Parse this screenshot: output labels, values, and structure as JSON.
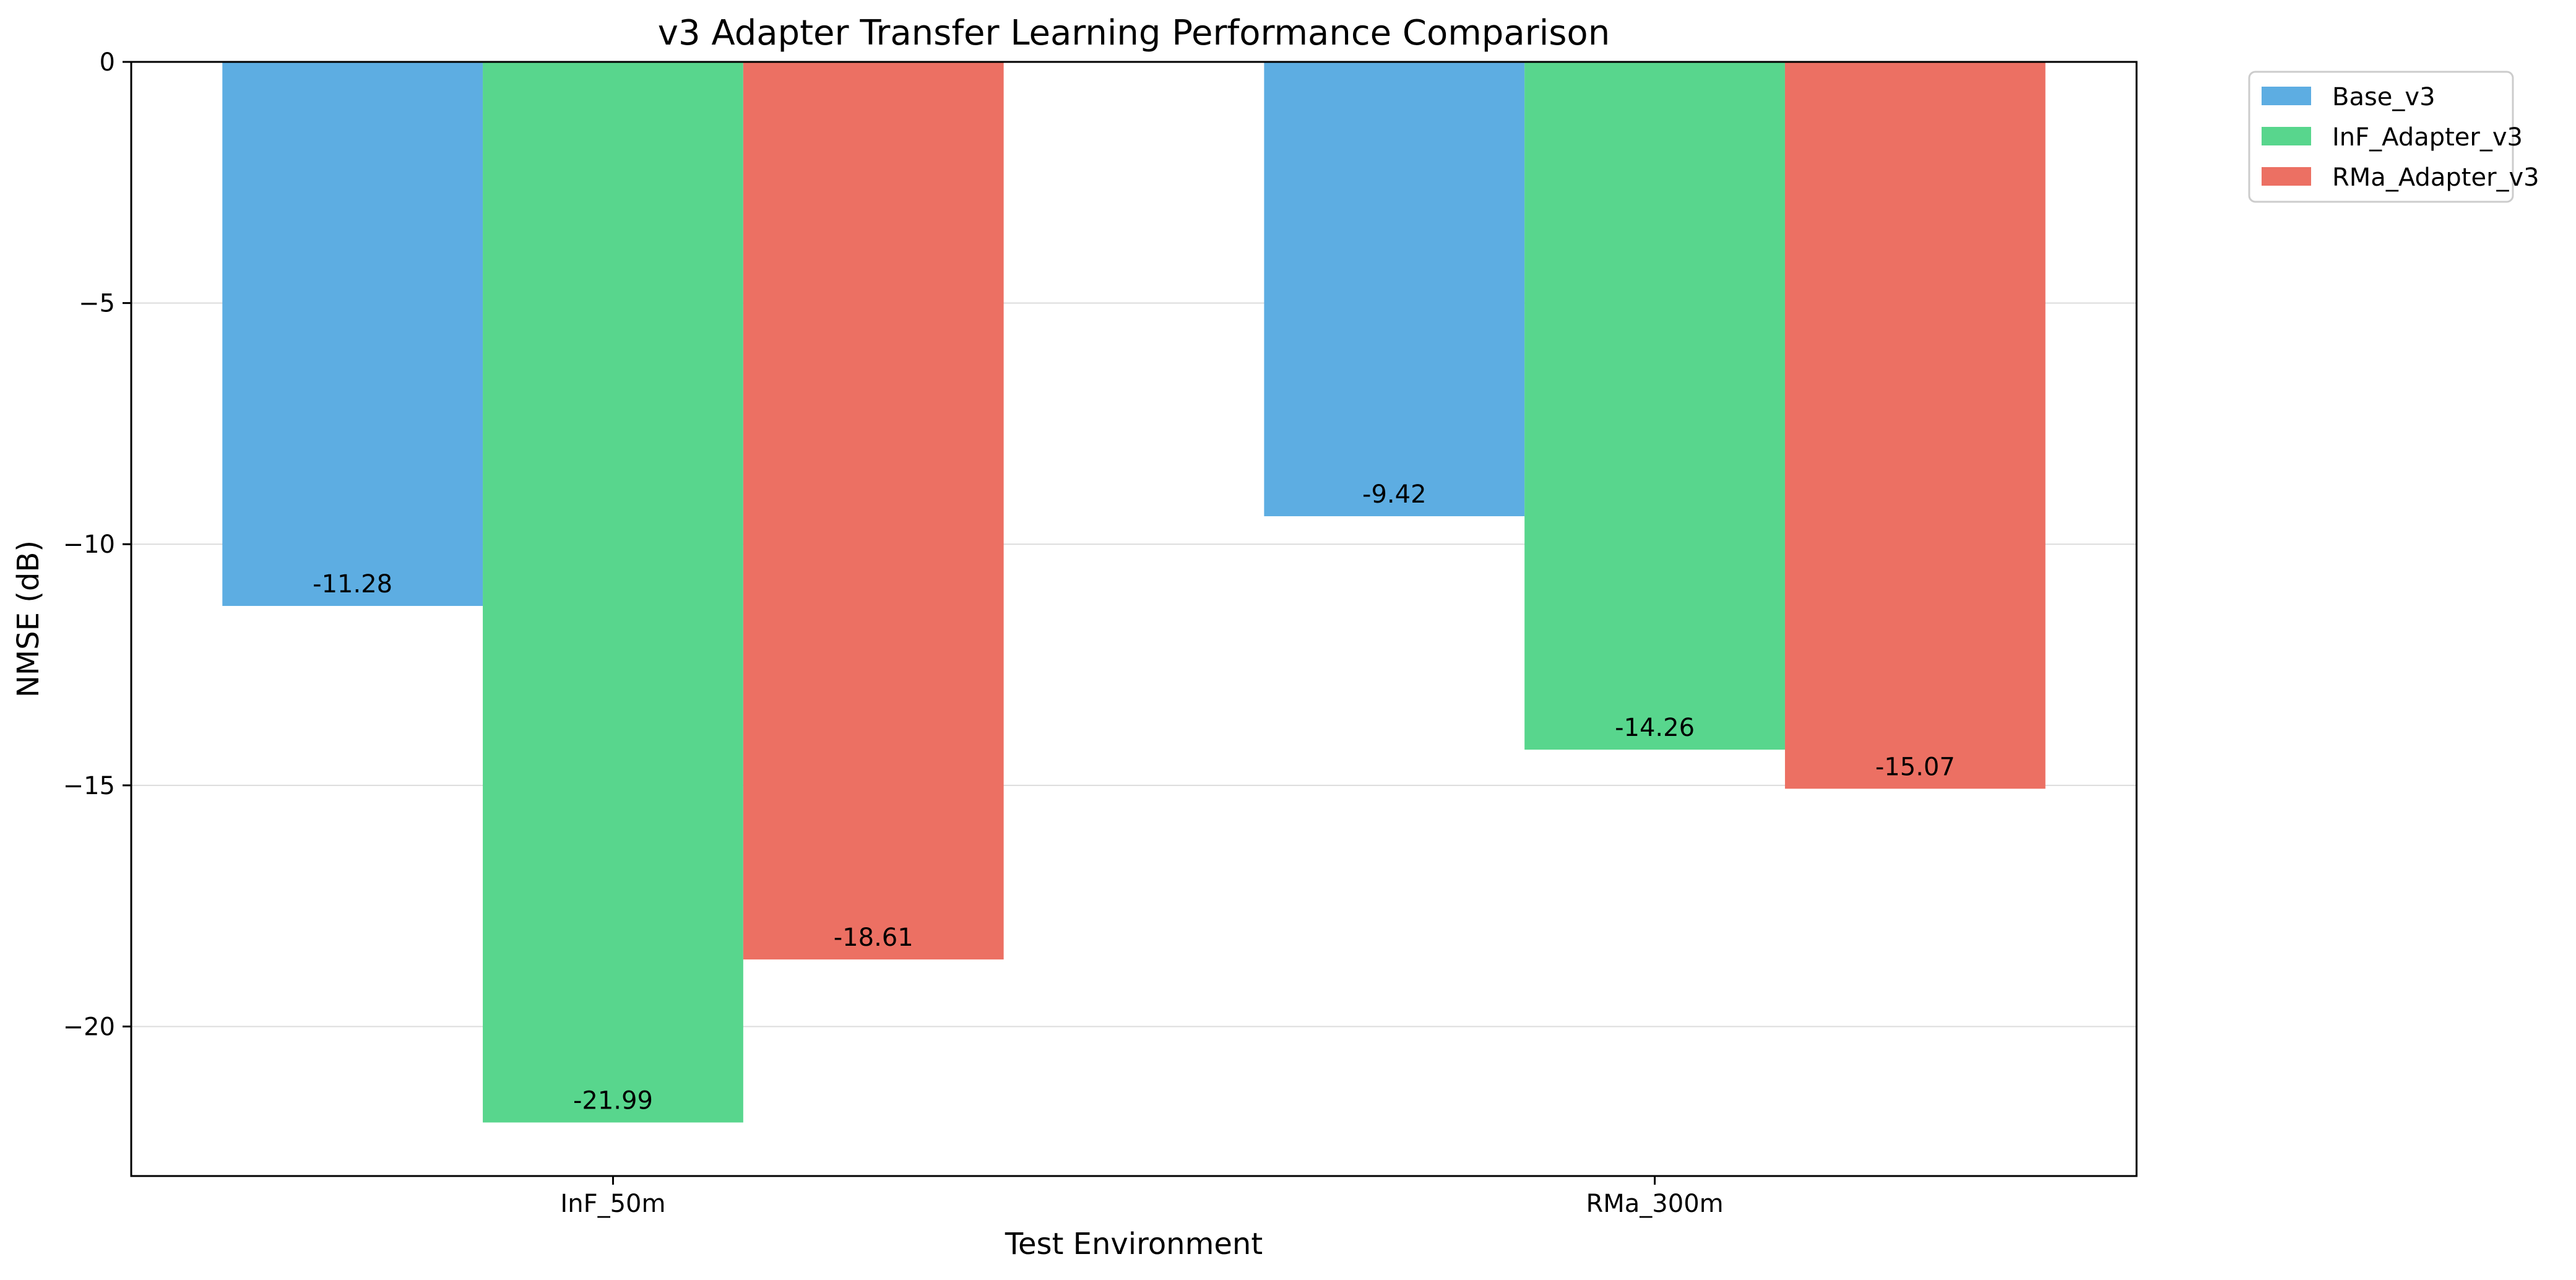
{
  "chart_data": {
    "type": "bar",
    "title": "v3 Adapter Transfer Learning Performance Comparison",
    "xlabel": "Test Environment",
    "ylabel": "NMSE (dB)",
    "categories": [
      "InF_50m",
      "RMa_300m"
    ],
    "series": [
      {
        "name": "Base_v3",
        "color": "#5dade2",
        "values": [
          -11.28,
          -9.42
        ],
        "labels": [
          "-11.28",
          "-9.42"
        ]
      },
      {
        "name": "InF_Adapter_v3",
        "color": "#58d68d",
        "values": [
          -21.99,
          -14.26
        ],
        "labels": [
          "-21.99",
          "-14.26"
        ]
      },
      {
        "name": "RMa_Adapter_v3",
        "color": "#ec7063",
        "values": [
          -18.61,
          -15.07
        ],
        "labels": [
          "-18.61",
          "-15.07"
        ]
      }
    ],
    "ylim": [
      -23.1,
      0
    ],
    "yticks": [
      0,
      -5,
      -10,
      -15,
      -20
    ],
    "ytick_labels": [
      "0",
      "−5",
      "−10",
      "−15",
      "−20"
    ],
    "grid": "y",
    "legend_position": "outside-top-right"
  }
}
